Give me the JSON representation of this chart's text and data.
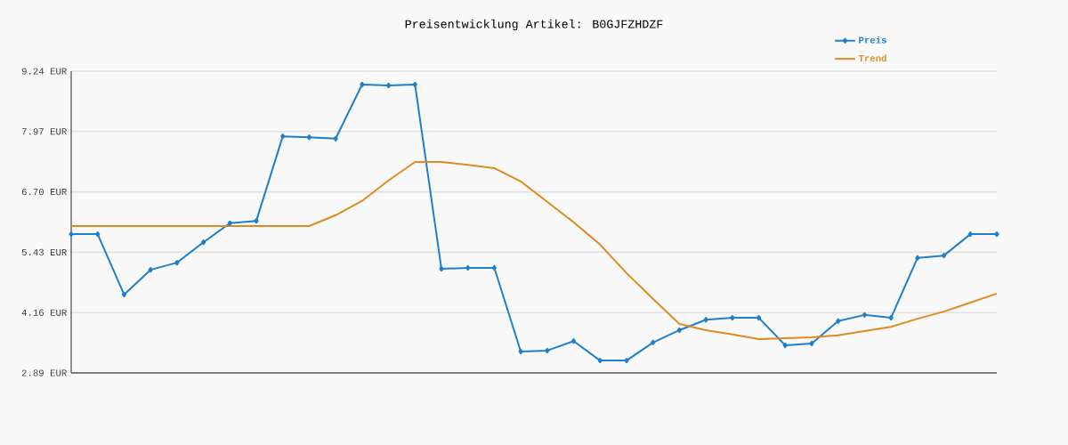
{
  "chart_data": {
    "type": "line",
    "title": "Preisentwicklung Artikel: B0GJFZHDZF",
    "categories": [
      null,
      null,
      null,
      null,
      null,
      null,
      null,
      null,
      null,
      null,
      null,
      null,
      null,
      null,
      null,
      null,
      null,
      null,
      null,
      null,
      null,
      null,
      null,
      null,
      null,
      null,
      null,
      null,
      null,
      null,
      null,
      null,
      null,
      null,
      null,
      null
    ],
    "series": [
      {
        "name": "Preis",
        "color": "#1f7fcc",
        "marker": "diamond",
        "values": [
          5.81,
          5.81,
          4.54,
          5.06,
          5.21,
          5.64,
          6.04,
          6.09,
          7.87,
          7.85,
          7.82,
          8.96,
          8.94,
          8.96,
          5.08,
          5.1,
          5.1,
          3.34,
          3.36,
          3.56,
          3.15,
          3.15,
          3.53,
          3.79,
          4.01,
          4.05,
          4.05,
          3.47,
          3.51,
          3.98,
          4.11,
          4.05,
          5.31,
          5.36,
          5.81,
          5.81
        ]
      },
      {
        "name": "Trend",
        "color": "#e08a1e",
        "marker": "none",
        "values": [
          5.98,
          5.98,
          5.98,
          5.98,
          5.98,
          5.98,
          5.98,
          5.98,
          5.98,
          5.98,
          6.21,
          6.51,
          6.94,
          7.33,
          7.33,
          7.27,
          7.2,
          6.92,
          6.49,
          6.06,
          5.59,
          4.99,
          4.45,
          3.92,
          3.79,
          3.7,
          3.6,
          3.62,
          3.64,
          3.68,
          3.77,
          3.86,
          4.03,
          4.18,
          4.37,
          4.56
        ]
      }
    ],
    "ylim": [
      2.89,
      9.24
    ],
    "yticks": [
      {
        "value": 2.89,
        "label": "2.89 EUR"
      },
      {
        "value": 4.16,
        "label": "4.16 EUR"
      },
      {
        "value": 5.43,
        "label": "5.43 EUR"
      },
      {
        "value": 6.7,
        "label": "6.70 EUR"
      },
      {
        "value": 7.97,
        "label": "7.97 EUR"
      },
      {
        "value": 9.24,
        "label": "9.24 EUR"
      }
    ],
    "grid": "y",
    "legend": "top right",
    "tick_labels": "y",
    "line_style": "solid"
  }
}
